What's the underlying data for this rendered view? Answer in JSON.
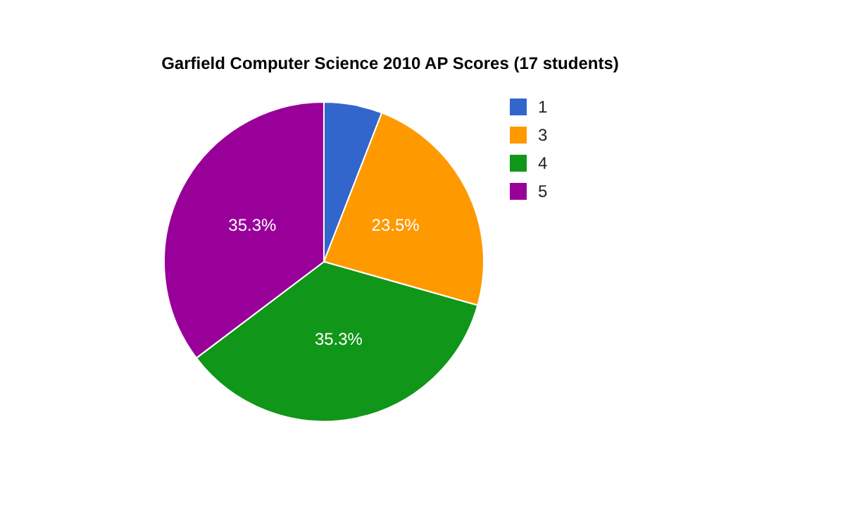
{
  "chart_data": {
    "type": "pie",
    "title": "Garfield Computer Science 2010 AP Scores (17 students)",
    "categories": [
      "1",
      "3",
      "4",
      "5"
    ],
    "values": [
      5.9,
      23.5,
      35.3,
      35.3
    ],
    "colors": [
      "#3366cc",
      "#ff9900",
      "#109618",
      "#990099"
    ],
    "value_labels": [
      null,
      "23.5%",
      "35.3%",
      "35.3%"
    ],
    "legend": "top right"
  }
}
